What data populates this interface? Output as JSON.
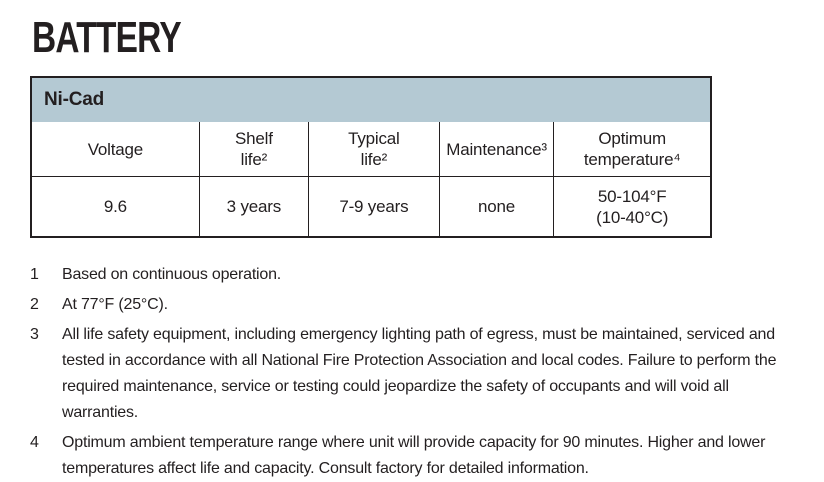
{
  "page": {
    "title": "BATTERY"
  },
  "colors": {
    "group_header_bg": "#b4c9d3",
    "table_border": "#231f20",
    "text": "#231f20",
    "page_bg": "#ffffff"
  },
  "table": {
    "group_header": "Ni-Cad",
    "columns": [
      "Voltage",
      "Shelf\nlife²",
      "Typical\nlife²",
      "Maintenance³",
      "Optimum\ntemperature⁴"
    ],
    "row": {
      "voltage": "9.6",
      "shelf_life": "3 years",
      "typical_life": "7-9 years",
      "maintenance": "none",
      "optimum_temperature": "50-104°F\n(10-40°C)"
    }
  },
  "footnotes": [
    {
      "num": "1",
      "text": "Based on continuous operation."
    },
    {
      "num": "2",
      "text": "At 77°F (25°C)."
    },
    {
      "num": "3",
      "text": "All life safety equipment, including emergency lighting path of egress, must be maintained, serviced and tested in accordance with all National Fire Protection Association and local codes. Failure to perform the required maintenance, service or testing could jeopardize the safety of occupants and will void all warranties."
    },
    {
      "num": "4",
      "text": "Optimum ambient temperature range where unit will provide capacity for 90 minutes. Higher and lower temperatures affect life and capacity. Consult factory for detailed information."
    }
  ]
}
